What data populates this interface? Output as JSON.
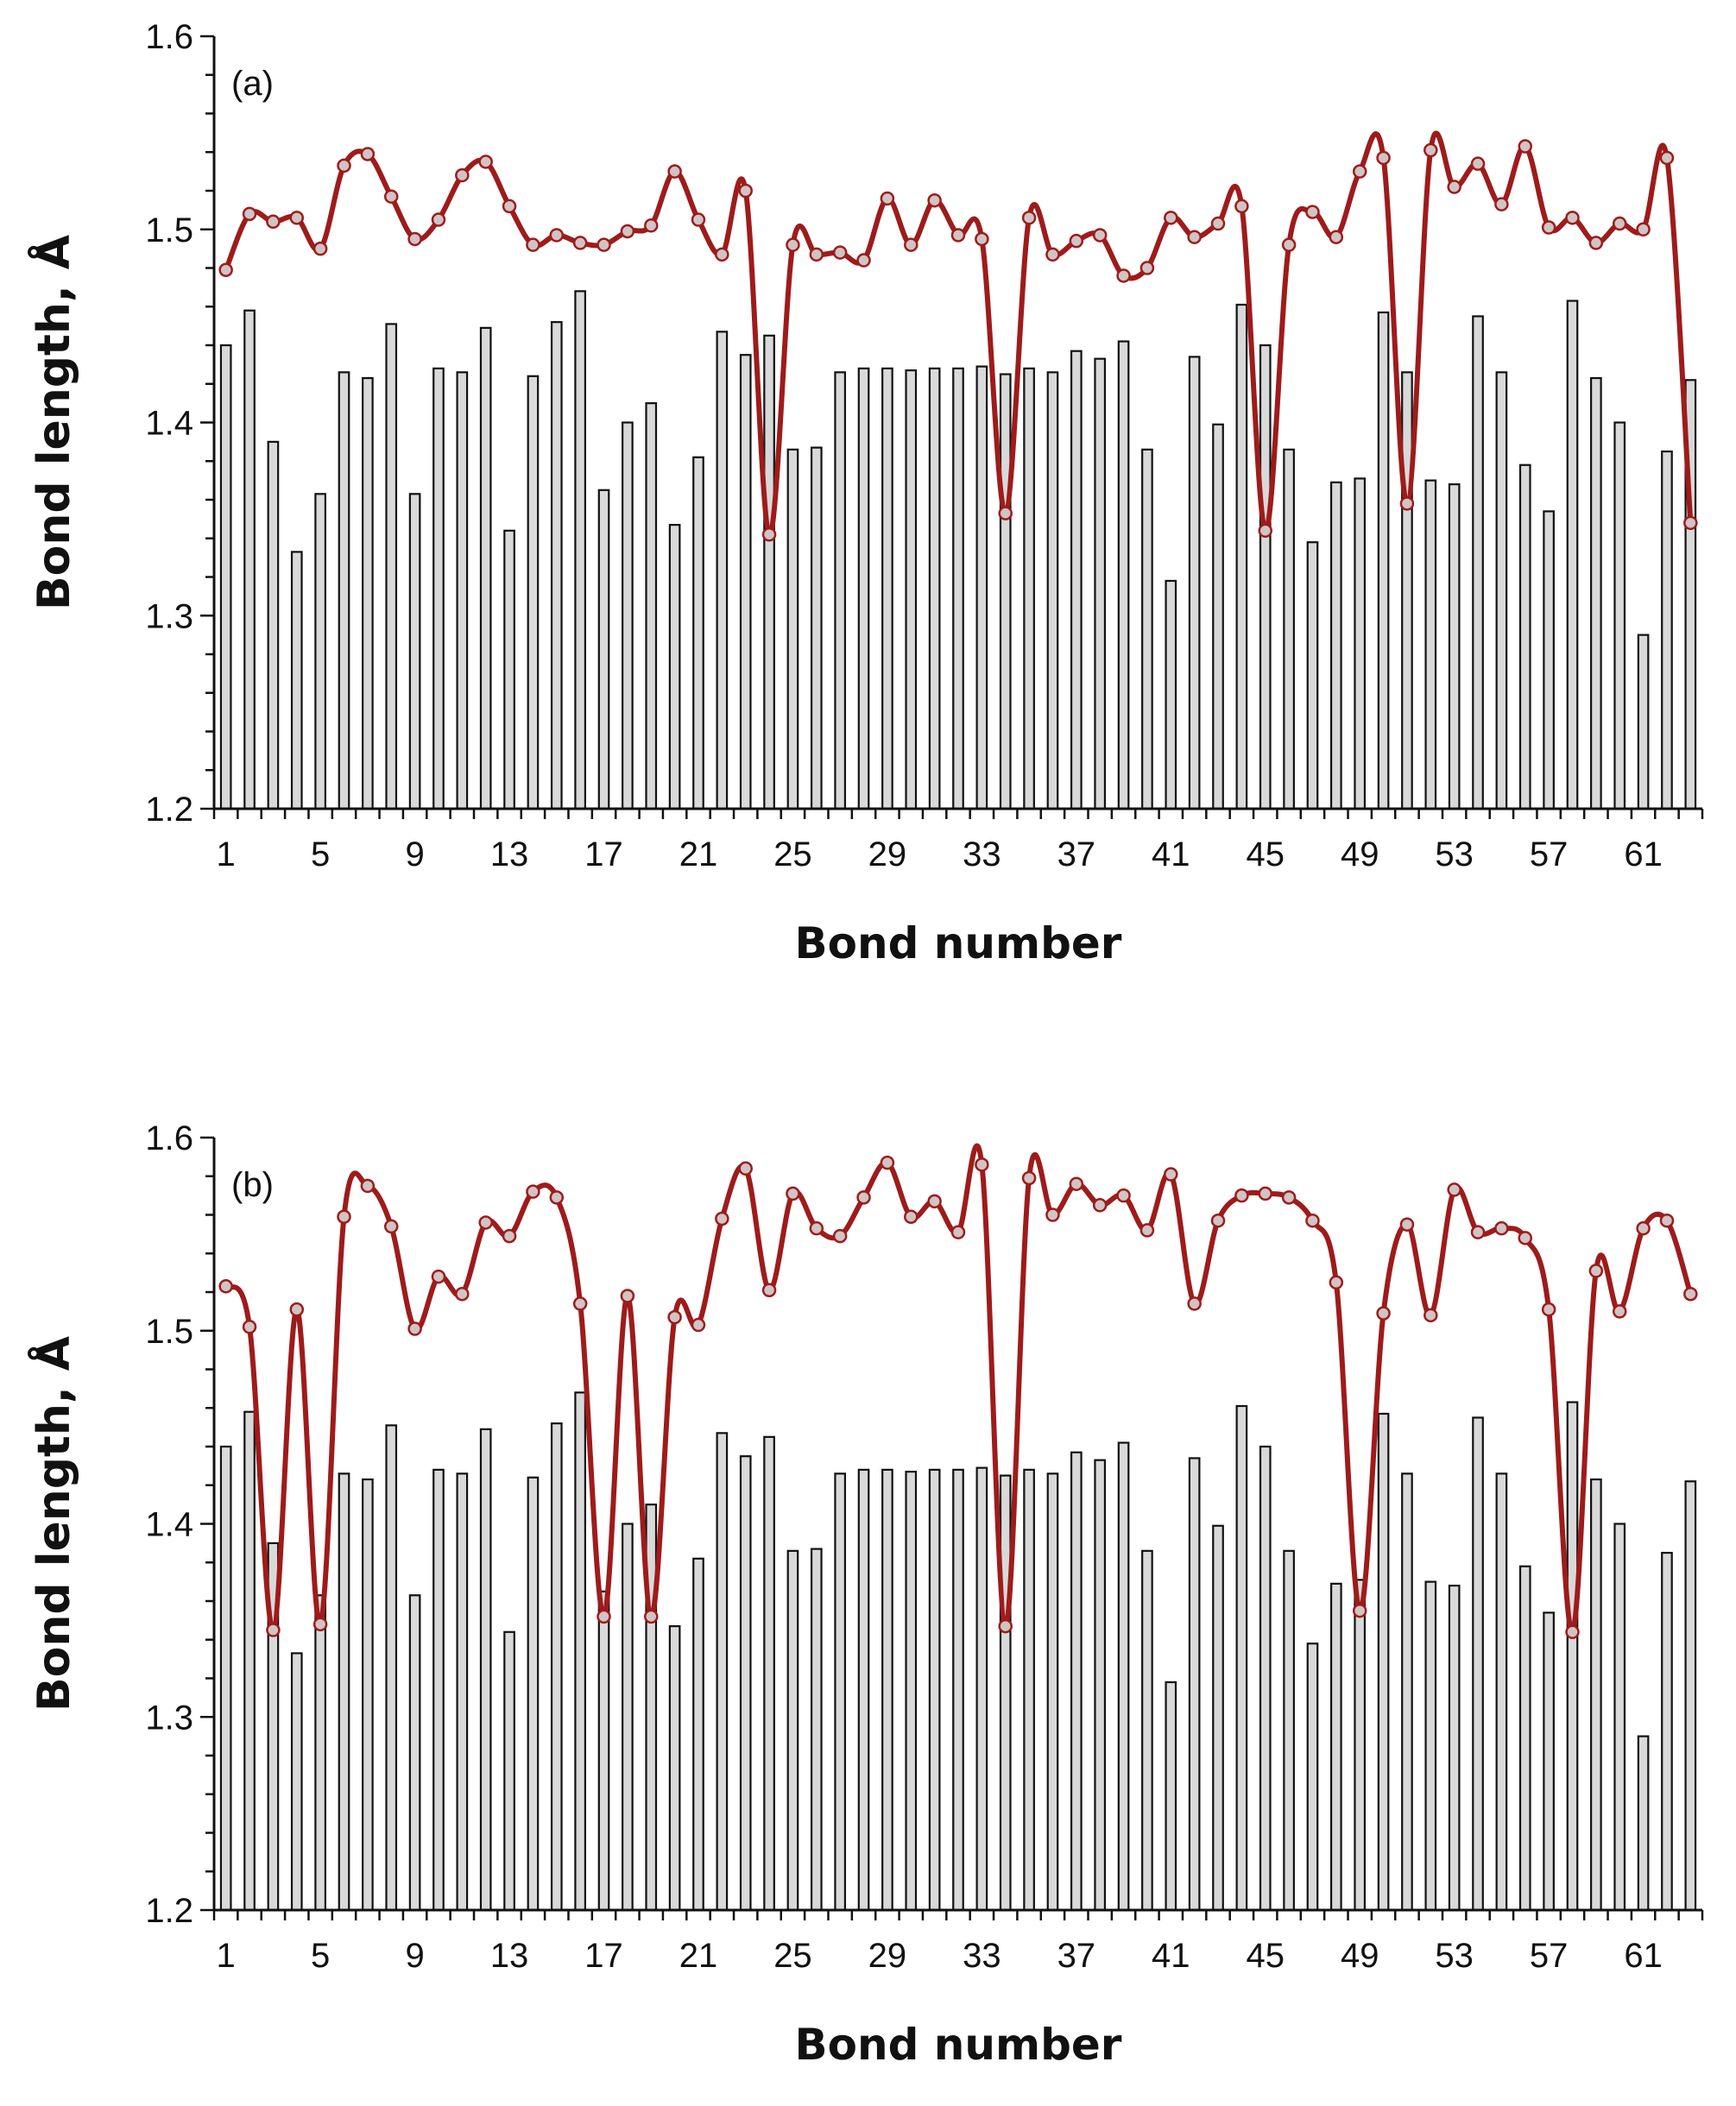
{
  "colors": {
    "bar_fill": "#d9d9d9",
    "bar_stroke": "#111111",
    "line": "#9e1b1b",
    "marker_fill": "#d0c4c4",
    "marker_stroke": "#9e1b1b",
    "axis": "#111111"
  },
  "chart_data": [
    {
      "type": "bar+line",
      "panel_label": "(a)",
      "xlabel": "Bond number",
      "ylabel": "Bond length, Å",
      "ylim": [
        1.2,
        1.6
      ],
      "yticks": [
        "1.2",
        "1.3",
        "1.4",
        "1.5",
        "1.6"
      ],
      "xticks": [
        "1",
        "5",
        "9",
        "13",
        "17",
        "21",
        "25",
        "29",
        "33",
        "37",
        "41",
        "45",
        "49",
        "53",
        "57",
        "61"
      ],
      "x": [
        1,
        2,
        3,
        4,
        5,
        6,
        7,
        8,
        9,
        10,
        11,
        12,
        13,
        14,
        15,
        16,
        17,
        18,
        19,
        20,
        21,
        22,
        23,
        24,
        25,
        26,
        27,
        28,
        29,
        30,
        31,
        32,
        33,
        34,
        35,
        36,
        37,
        38,
        39,
        40,
        41,
        42,
        43,
        44,
        45,
        46,
        47,
        48,
        49,
        50,
        51,
        52,
        53,
        54,
        55,
        56,
        57,
        58,
        59,
        60,
        61,
        62,
        63
      ],
      "series": [
        {
          "name": "bars",
          "kind": "bar",
          "values": [
            1.44,
            1.458,
            1.39,
            1.333,
            1.363,
            1.426,
            1.423,
            1.451,
            1.363,
            1.428,
            1.426,
            1.449,
            1.344,
            1.424,
            1.452,
            1.468,
            1.365,
            1.4,
            1.41,
            1.347,
            1.382,
            1.447,
            1.435,
            1.445,
            1.386,
            1.387,
            1.426,
            1.428,
            1.428,
            1.427,
            1.428,
            1.428,
            1.429,
            1.425,
            1.428,
            1.426,
            1.437,
            1.433,
            1.442,
            1.386,
            1.318,
            1.434,
            1.399,
            1.461,
            1.44,
            1.386,
            1.338,
            1.369,
            1.371,
            1.457,
            1.426,
            1.37,
            1.368,
            1.455,
            1.426,
            1.378,
            1.354,
            1.463,
            1.423,
            1.4,
            1.29,
            1.385,
            1.422
          ]
        },
        {
          "name": "line",
          "kind": "line",
          "values": [
            1.479,
            1.508,
            1.504,
            1.506,
            1.49,
            1.533,
            1.539,
            1.517,
            1.495,
            1.505,
            1.528,
            1.535,
            1.512,
            1.492,
            1.497,
            1.493,
            1.492,
            1.499,
            1.502,
            1.53,
            1.505,
            1.487,
            1.52,
            1.342,
            1.492,
            1.487,
            1.488,
            1.484,
            1.516,
            1.492,
            1.515,
            1.497,
            1.495,
            1.353,
            1.506,
            1.487,
            1.494,
            1.497,
            1.476,
            1.48,
            1.506,
            1.496,
            1.503,
            1.512,
            1.344,
            1.492,
            1.509,
            1.496,
            1.53,
            1.537,
            1.358,
            1.541,
            1.522,
            1.534,
            1.513,
            1.543,
            1.501,
            1.506,
            1.493,
            1.503,
            1.5,
            1.537,
            1.348
          ]
        }
      ]
    },
    {
      "type": "bar+line",
      "panel_label": "(b)",
      "xlabel": "Bond number",
      "ylabel": "Bond length, Å",
      "ylim": [
        1.2,
        1.6
      ],
      "yticks": [
        "1.2",
        "1.3",
        "1.4",
        "1.5",
        "1.6"
      ],
      "xticks": [
        "1",
        "5",
        "9",
        "13",
        "17",
        "21",
        "25",
        "29",
        "33",
        "37",
        "41",
        "45",
        "49",
        "53",
        "57",
        "61"
      ],
      "x": [
        1,
        2,
        3,
        4,
        5,
        6,
        7,
        8,
        9,
        10,
        11,
        12,
        13,
        14,
        15,
        16,
        17,
        18,
        19,
        20,
        21,
        22,
        23,
        24,
        25,
        26,
        27,
        28,
        29,
        30,
        31,
        32,
        33,
        34,
        35,
        36,
        37,
        38,
        39,
        40,
        41,
        42,
        43,
        44,
        45,
        46,
        47,
        48,
        49,
        50,
        51,
        52,
        53,
        54,
        55,
        56,
        57,
        58,
        59,
        60,
        61,
        62,
        63
      ],
      "series": [
        {
          "name": "bars",
          "kind": "bar",
          "values": [
            1.44,
            1.458,
            1.39,
            1.333,
            1.363,
            1.426,
            1.423,
            1.451,
            1.363,
            1.428,
            1.426,
            1.449,
            1.344,
            1.424,
            1.452,
            1.468,
            1.365,
            1.4,
            1.41,
            1.347,
            1.382,
            1.447,
            1.435,
            1.445,
            1.386,
            1.387,
            1.426,
            1.428,
            1.428,
            1.427,
            1.428,
            1.428,
            1.429,
            1.425,
            1.428,
            1.426,
            1.437,
            1.433,
            1.442,
            1.386,
            1.318,
            1.434,
            1.399,
            1.461,
            1.44,
            1.386,
            1.338,
            1.369,
            1.371,
            1.457,
            1.426,
            1.37,
            1.368,
            1.455,
            1.426,
            1.378,
            1.354,
            1.463,
            1.423,
            1.4,
            1.29,
            1.385,
            1.422
          ]
        },
        {
          "name": "line",
          "kind": "line",
          "values": [
            1.523,
            1.502,
            1.345,
            1.511,
            1.348,
            1.559,
            1.575,
            1.554,
            1.501,
            1.528,
            1.519,
            1.556,
            1.549,
            1.572,
            1.569,
            1.514,
            1.352,
            1.518,
            1.352,
            1.507,
            1.503,
            1.558,
            1.584,
            1.521,
            1.571,
            1.553,
            1.549,
            1.569,
            1.587,
            1.559,
            1.567,
            1.551,
            1.586,
            1.347,
            1.579,
            1.56,
            1.576,
            1.565,
            1.57,
            1.552,
            1.581,
            1.514,
            1.557,
            1.57,
            1.571,
            1.569,
            1.557,
            1.525,
            1.355,
            1.509,
            1.555,
            1.508,
            1.573,
            1.551,
            1.553,
            1.548,
            1.511,
            1.344,
            1.531,
            1.51,
            1.553,
            1.557,
            1.519
          ]
        }
      ]
    }
  ]
}
